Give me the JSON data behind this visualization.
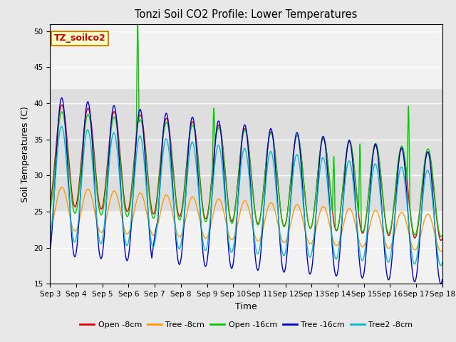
{
  "title": "Tonzi Soil CO2 Profile: Lower Temperatures",
  "xlabel": "Time",
  "ylabel": "Soil Temperatures (C)",
  "ylim": [
    15,
    51
  ],
  "yticks": [
    15,
    20,
    25,
    30,
    35,
    40,
    45,
    50
  ],
  "bg_color": "#e8e8e8",
  "plot_bg": "#f2f2f2",
  "legend_entries": [
    "Open -8cm",
    "Tree -8cm",
    "Open -16cm",
    "Tree -16cm",
    "Tree2 -8cm"
  ],
  "line_colors": [
    "#dd0000",
    "#ff9900",
    "#00cc00",
    "#0000cc",
    "#00bbcc"
  ],
  "annotation_text": "TZ_soilco2",
  "annotation_bg": "#ffffcc",
  "annotation_border": "#cc8800",
  "n_days": 15,
  "points_per_day": 96,
  "start_day": 3,
  "hspan_lo": 42,
  "hspan_hi": 25
}
